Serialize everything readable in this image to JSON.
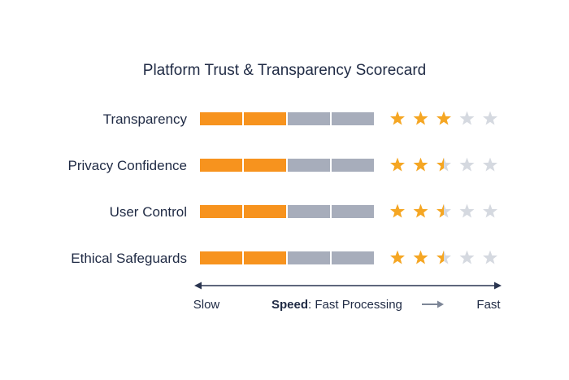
{
  "chart_data": {
    "type": "bar",
    "title": "Platform Trust & Transparency Scorecard",
    "categories": [
      "Transparency",
      "Privacy Confidence",
      "User Control",
      "Ethical Safeguards"
    ],
    "segments_total": 4,
    "filled_segments": [
      2,
      2,
      2,
      2
    ],
    "stars_max": 5,
    "star_ratings": [
      3,
      2.5,
      2.5,
      2.5
    ],
    "axis": {
      "left_label": "Slow",
      "right_label": "Fast",
      "title_bold": "Speed",
      "title_rest": ": Fast Processing"
    },
    "colors": {
      "filled": "#f7931e",
      "empty": "#a7adbb",
      "star_on": "#f5a623",
      "star_off": "#d5d9e0",
      "axis": "#2a3550",
      "arrow": "#7d8697"
    }
  }
}
